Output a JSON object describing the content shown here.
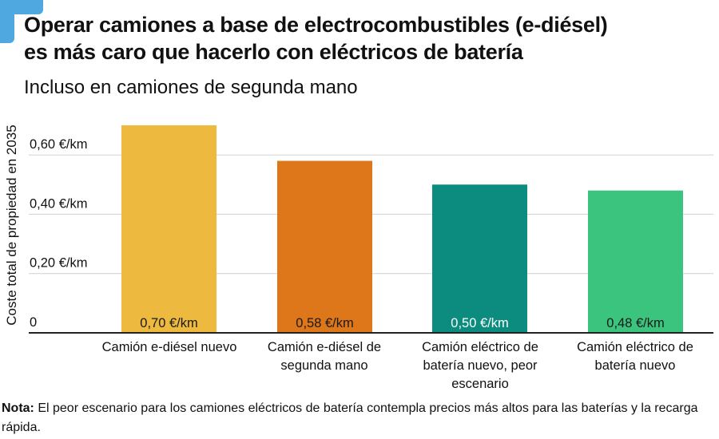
{
  "title_line1": "Operar camiones a base de electrocombustibles (e-diésel)",
  "title_line2": "es más caro que hacerlo con eléctricos de batería",
  "subtitle": "Incluso en camiones de segunda mano",
  "note_label": "Nota:",
  "note_text": " El peor escenario para los camiones eléctricos de batería contempla precios más altos para las baterías y la recarga rápida.",
  "chart_data": {
    "type": "bar",
    "title": "Operar camiones a base de electrocombustibles (e-diésel) es más caro que hacerlo con eléctricos de batería",
    "ylabel": "Coste total de propiedad en 2035",
    "xlabel": "",
    "ylim": [
      0,
      0.75
    ],
    "yticks": [
      0,
      0.2,
      0.4,
      0.6
    ],
    "ytick_labels": [
      "0",
      "0,20 €/km",
      "0,40 €/km",
      "0,60 €/km"
    ],
    "grid": true,
    "categories": [
      "Camión e-diésel nuevo",
      "Camión e-diésel de segunda mano",
      "Camión eléctrico de batería nuevo, peor escenario",
      "Camión eléctrico de batería nuevo"
    ],
    "values": [
      0.7,
      0.58,
      0.5,
      0.48
    ],
    "data_labels": [
      "0,70 €/km",
      "0,58 €/km",
      "0,50 €/km",
      "0,48 €/km"
    ],
    "colors": [
      "#edb93e",
      "#de761a",
      "#0b8c7e",
      "#3ac47e"
    ],
    "label_colors": [
      "#1a1a1a",
      "#1a1a1a",
      "#ffffff",
      "#1a1a1a"
    ]
  }
}
